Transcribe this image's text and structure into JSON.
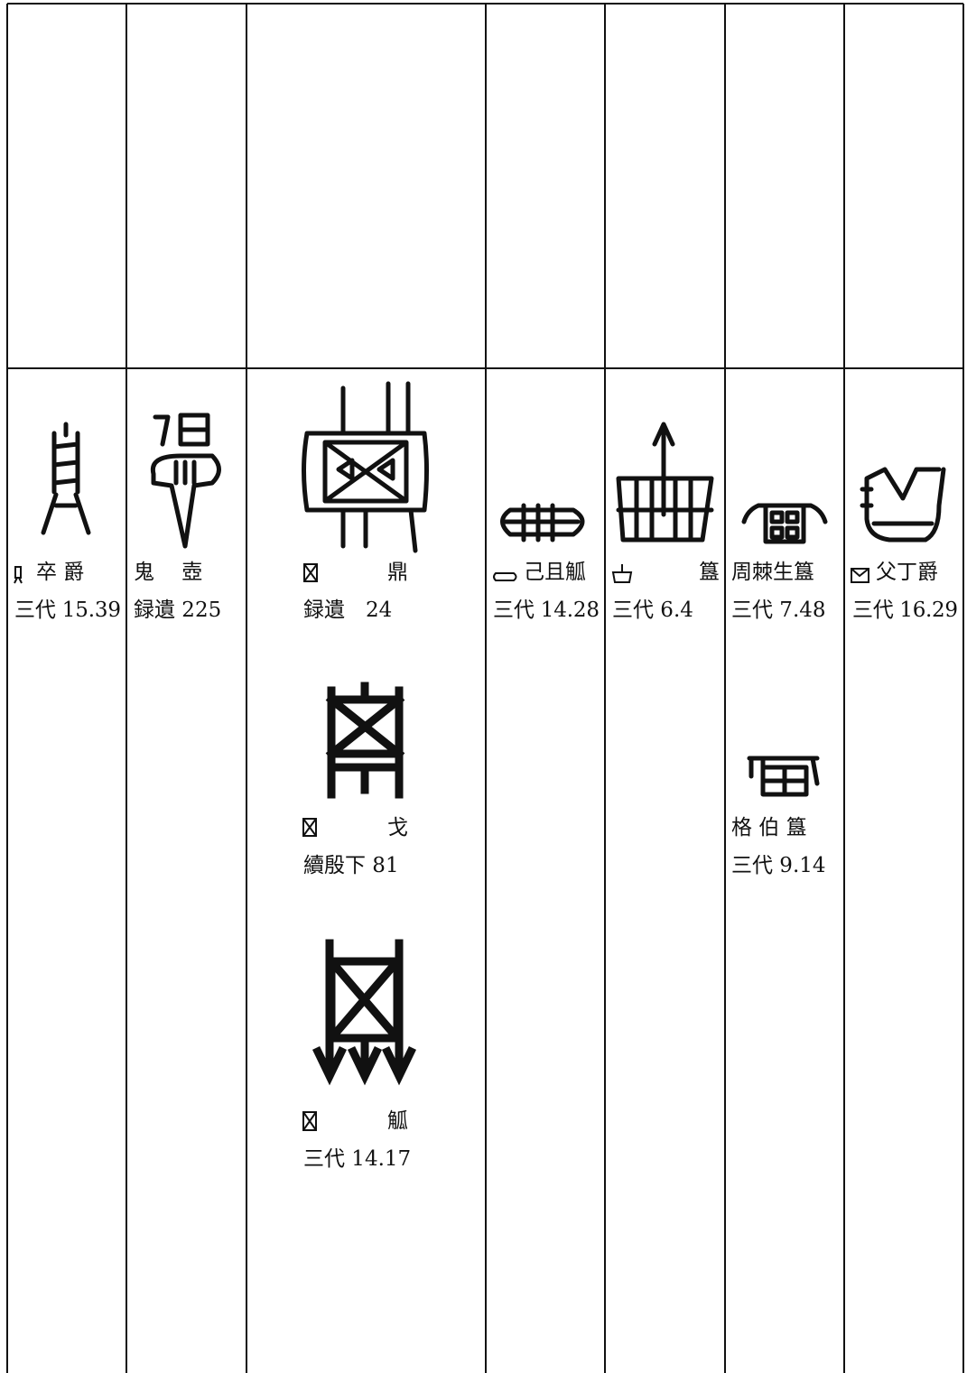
{
  "table": {
    "columns": [
      {
        "entries": [
          {
            "label": "卒 爵",
            "source": "三代 15.39"
          }
        ]
      },
      {
        "entries": [
          {
            "label": "鬼　 壺",
            "source": "録遺 225"
          }
        ]
      },
      {
        "entries": [
          {
            "label": "鼎",
            "source": "録遺　24"
          },
          {
            "label": "戈",
            "source": "續殷下 81"
          },
          {
            "label": "觚",
            "source": "三代 14.17"
          }
        ]
      },
      {
        "entries": [
          {
            "label": "己且觚",
            "source": "三代 14.28"
          }
        ]
      },
      {
        "entries": [
          {
            "label": "簋",
            "source": "三代 6.4"
          }
        ]
      },
      {
        "entries": [
          {
            "label": "周棘生簋",
            "source": "三代 7.48"
          },
          {
            "label": "格 伯 簋",
            "source": "三代 9.14"
          }
        ]
      },
      {
        "entries": [
          {
            "label": "父丁爵",
            "source": "三代 16.29"
          }
        ]
      }
    ]
  }
}
